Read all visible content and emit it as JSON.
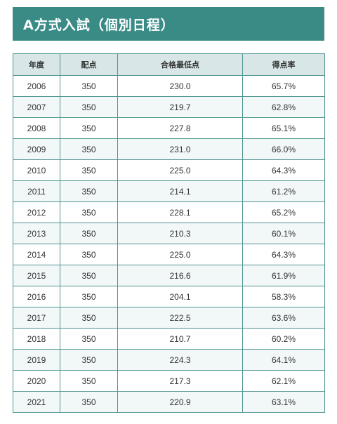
{
  "title": "A方式入試（個別日程）",
  "table": {
    "headers": [
      "年度",
      "配点",
      "合格最低点",
      "得点率"
    ],
    "rows": [
      [
        "2006",
        "350",
        "230.0",
        "65.7%"
      ],
      [
        "2007",
        "350",
        "219.7",
        "62.8%"
      ],
      [
        "2008",
        "350",
        "227.8",
        "65.1%"
      ],
      [
        "2009",
        "350",
        "231.0",
        "66.0%"
      ],
      [
        "2010",
        "350",
        "225.0",
        "64.3%"
      ],
      [
        "2011",
        "350",
        "214.1",
        "61.2%"
      ],
      [
        "2012",
        "350",
        "228.1",
        "65.2%"
      ],
      [
        "2013",
        "350",
        "210.3",
        "60.1%"
      ],
      [
        "2014",
        "350",
        "225.0",
        "64.3%"
      ],
      [
        "2015",
        "350",
        "216.6",
        "61.9%"
      ],
      [
        "2016",
        "350",
        "204.1",
        "58.3%"
      ],
      [
        "2017",
        "350",
        "222.5",
        "63.6%"
      ],
      [
        "2018",
        "350",
        "210.7",
        "60.2%"
      ],
      [
        "2019",
        "350",
        "224.3",
        "64.1%"
      ],
      [
        "2020",
        "350",
        "217.3",
        "62.1%"
      ],
      [
        "2021",
        "350",
        "220.9",
        "63.1%"
      ]
    ]
  },
  "colors": {
    "title_background": "#3a8b86",
    "header_background": "#d8e6e7",
    "border": "#4f9590",
    "stripe": "#f2f7f8"
  }
}
